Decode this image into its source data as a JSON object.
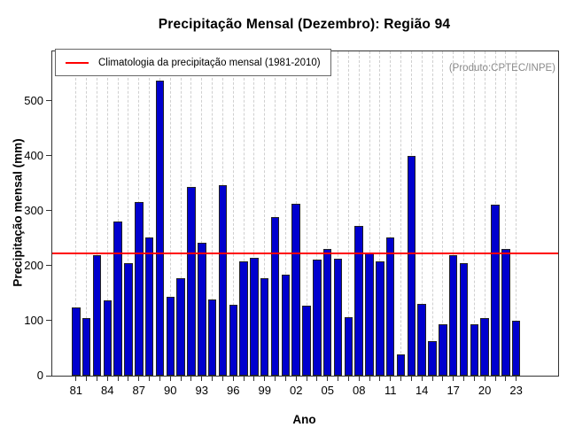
{
  "title": "Precipitação Mensal (Dezembro): Região 94",
  "annotation": "(Produto:CPTEC/INPE)",
  "legend": {
    "label": "Climatologia da precipitação mensal (1981-2010)",
    "line_color": "#FF0000"
  },
  "chart_data": {
    "type": "bar",
    "xlabel": "Ano",
    "ylabel": "Precipitação mensal (mm)",
    "ylim": [
      0,
      590
    ],
    "yticks": [
      0,
      100,
      200,
      300,
      400,
      500
    ],
    "x_tick_labels": [
      "81",
      "84",
      "87",
      "90",
      "93",
      "96",
      "99",
      "02",
      "05",
      "08",
      "11",
      "14",
      "17",
      "20",
      "23"
    ],
    "x_label_every": 3,
    "years": [
      1981,
      1982,
      1983,
      1984,
      1985,
      1986,
      1987,
      1988,
      1989,
      1990,
      1991,
      1992,
      1993,
      1994,
      1995,
      1996,
      1997,
      1998,
      1999,
      2000,
      2001,
      2002,
      2003,
      2004,
      2005,
      2006,
      2007,
      2008,
      2009,
      2010,
      2011,
      2012,
      2013,
      2014,
      2015,
      2016,
      2017,
      2018,
      2019,
      2020,
      2021,
      2022,
      2023
    ],
    "values": [
      124,
      105,
      220,
      137,
      280,
      204,
      316,
      251,
      536,
      143,
      177,
      343,
      241,
      138,
      347,
      129,
      208,
      215,
      177,
      289,
      184,
      313,
      127,
      211,
      231,
      213,
      107,
      273,
      224,
      208,
      252,
      38,
      400,
      130,
      63,
      94,
      220,
      205,
      94,
      105,
      311,
      231,
      100
    ],
    "climatology_value": 222,
    "bar_color": "#0000CE",
    "bar_border_color": "#222222",
    "grid": "vertical-dashed",
    "grid_color": "#cfcfcf",
    "legend_position": "top-left"
  }
}
